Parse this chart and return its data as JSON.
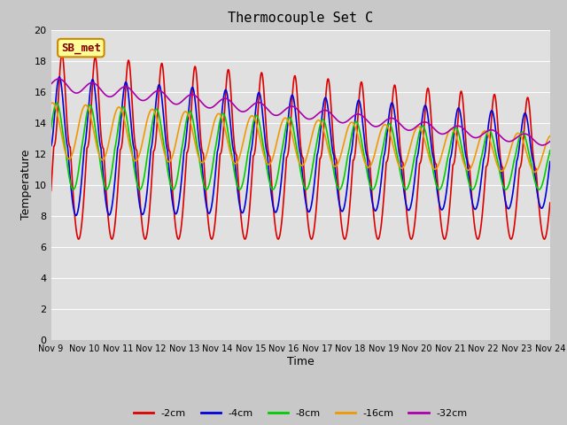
{
  "title": "Thermocouple Set C",
  "xlabel": "Time",
  "ylabel": "Temperature",
  "ylim": [
    0,
    20
  ],
  "yticks": [
    0,
    2,
    4,
    6,
    8,
    10,
    12,
    14,
    16,
    18,
    20
  ],
  "fig_bg": "#c8c8c8",
  "ax_bg": "#e0e0e0",
  "colors": {
    "-2cm": "#dd0000",
    "-4cm": "#0000dd",
    "-8cm": "#00cc00",
    "-16cm": "#ee9900",
    "-32cm": "#aa00aa"
  },
  "annotation_text": "SB_met",
  "annotation_bg": "#ffff99",
  "annotation_border": "#cc8800",
  "x_tick_labels": [
    "Nov 9",
    "Nov 10",
    "Nov 11",
    "Nov 12",
    "Nov 13",
    "Nov 14",
    "Nov 15",
    "Nov 16",
    "Nov 17",
    "Nov 18",
    "Nov 19",
    "Nov 20",
    "Nov 21",
    "Nov 22",
    "Nov 23",
    "Nov 24"
  ]
}
